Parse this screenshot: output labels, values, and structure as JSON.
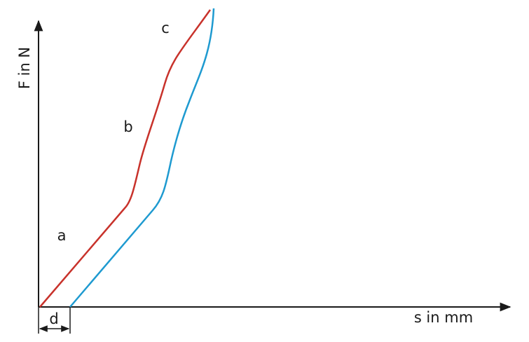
{
  "axes": {
    "y_label": "F in N",
    "x_label": "s in mm"
  },
  "curve_labels": {
    "a": "a",
    "b": "b",
    "c": "c"
  },
  "dimension": {
    "label": "d"
  }
}
